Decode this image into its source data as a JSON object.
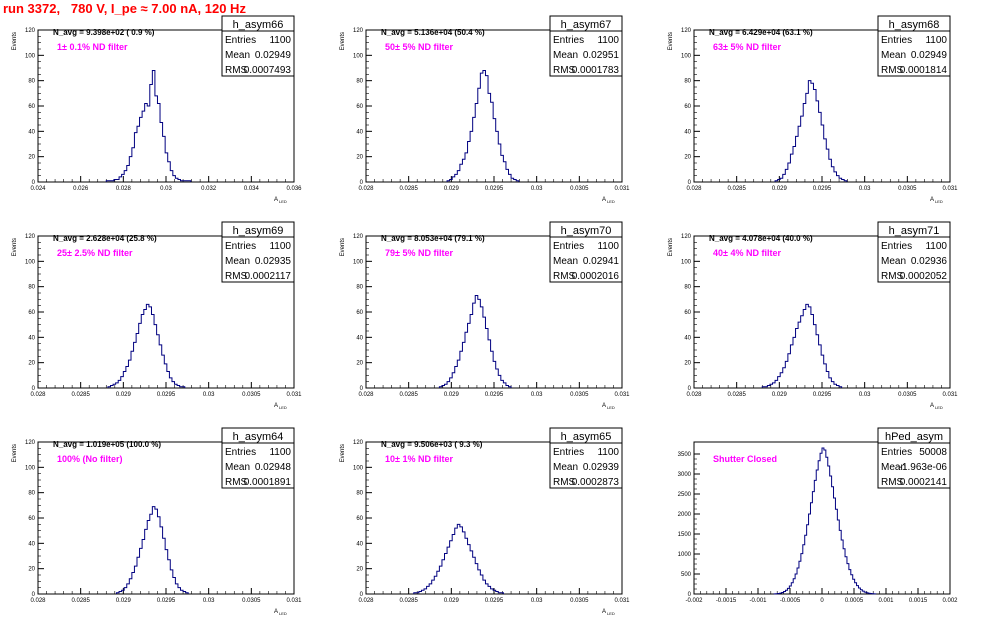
{
  "page": {
    "title": "run 3372,   780 V, I_pe ≈ 7.00 nA, 120 Hz",
    "line_color": "#000080",
    "annotation_color": "#ff00ff",
    "title_color": "#ff0000"
  },
  "chart_data": [
    {
      "type": "bar",
      "name": "h_asym66",
      "n_avg": "N_avg = 9.398e+02 ( 0.9 %)",
      "filter_label": "1± 0.1% ND filter",
      "stats": {
        "Entries": "1100",
        "Mean": "0.02949",
        "RMS": "0.0007493"
      },
      "xlabel": "A",
      "xlabel_sub": "LED",
      "ylabel": "Events",
      "xlim": [
        0.024,
        0.036
      ],
      "ylim": [
        0,
        120
      ],
      "xticks": [
        "0.024",
        "0.026",
        "0.028",
        "0.03",
        "0.032",
        "0.034",
        "0.036"
      ],
      "xtick_values": [
        0.024,
        0.026,
        0.028,
        0.03,
        0.032,
        0.034,
        0.036
      ],
      "yticks": [
        0,
        20,
        40,
        60,
        80,
        100,
        120
      ],
      "bins": {
        "x0": 0.0272,
        "width": 0.00012,
        "counts": [
          1,
          1,
          1,
          2,
          2,
          4,
          6,
          9,
          13,
          20,
          27,
          39,
          44,
          51,
          56,
          62,
          60,
          77,
          88,
          68,
          62,
          47,
          36,
          23,
          16,
          9,
          5,
          3,
          2,
          1,
          1,
          1,
          1
        ]
      }
    },
    {
      "type": "bar",
      "name": "h_asym67",
      "n_avg": "N_avg = 5.136e+04 (50.4 %)",
      "filter_label": "50± 5% ND filter",
      "stats": {
        "Entries": "1100",
        "Mean": "0.02951",
        "RMS": "0.0001783"
      },
      "xlabel": "A",
      "xlabel_sub": "LED",
      "ylabel": "Events",
      "xlim": [
        0.028,
        0.031
      ],
      "ylim": [
        0,
        120
      ],
      "xticks": [
        "0.028",
        "0.0285",
        "0.029",
        "0.0295",
        "0.03",
        "0.0305",
        "0.031"
      ],
      "xtick_values": [
        0.028,
        0.0285,
        0.029,
        0.0295,
        0.03,
        0.0305,
        0.031
      ],
      "yticks": [
        0,
        20,
        40,
        60,
        80,
        100,
        120
      ],
      "bins": {
        "x0": 0.02895,
        "width": 3e-05,
        "counts": [
          1,
          2,
          4,
          6,
          9,
          14,
          18,
          23,
          32,
          40,
          51,
          62,
          74,
          86,
          88,
          84,
          70,
          63,
          50,
          40,
          30,
          21,
          16,
          10,
          6,
          3,
          2,
          1
        ]
      }
    },
    {
      "type": "bar",
      "name": "h_asym68",
      "n_avg": "N_avg = 6.429e+04 (63.1 %)",
      "filter_label": "63± 5% ND filter",
      "stats": {
        "Entries": "1100",
        "Mean": "0.02949",
        "RMS": "0.0001814"
      },
      "xlabel": "A",
      "xlabel_sub": "LED",
      "ylabel": "Events",
      "xlim": [
        0.028,
        0.031
      ],
      "ylim": [
        0,
        120
      ],
      "xticks": [
        "0.028",
        "0.0285",
        "0.029",
        "0.0295",
        "0.03",
        "0.0305",
        "0.031"
      ],
      "xtick_values": [
        0.028,
        0.0285,
        0.029,
        0.0295,
        0.03,
        0.0305,
        0.031
      ],
      "yticks": [
        0,
        20,
        40,
        60,
        80,
        100,
        120
      ],
      "bins": {
        "x0": 0.02895,
        "width": 3e-05,
        "counts": [
          1,
          2,
          3,
          6,
          10,
          15,
          22,
          28,
          36,
          44,
          52,
          62,
          70,
          80,
          78,
          73,
          64,
          55,
          45,
          34,
          26,
          18,
          12,
          8,
          5,
          3,
          2,
          1
        ]
      }
    },
    {
      "type": "bar",
      "name": "h_asym69",
      "n_avg": "N_avg = 2.628e+04 (25.8 %)",
      "filter_label": "25± 2.5% ND filter",
      "stats": {
        "Entries": "1100",
        "Mean": "0.02935",
        "RMS": "0.0002117"
      },
      "xlabel": "A",
      "xlabel_sub": "LED",
      "ylabel": "Events",
      "xlim": [
        0.028,
        0.031
      ],
      "ylim": [
        0,
        120
      ],
      "xticks": [
        "0.028",
        "0.0285",
        "0.029",
        "0.0295",
        "0.03",
        "0.0305",
        "0.031"
      ],
      "xtick_values": [
        0.028,
        0.0285,
        0.029,
        0.0295,
        0.03,
        0.0305,
        0.031
      ],
      "yticks": [
        0,
        20,
        40,
        60,
        80,
        100,
        120
      ],
      "bins": {
        "x0": 0.02882,
        "width": 3e-05,
        "counts": [
          1,
          2,
          3,
          4,
          6,
          9,
          13,
          17,
          22,
          29,
          36,
          43,
          51,
          58,
          62,
          66,
          64,
          58,
          50,
          42,
          34,
          26,
          19,
          13,
          8,
          5,
          3,
          2,
          1,
          1
        ]
      }
    },
    {
      "type": "bar",
      "name": "h_asym70",
      "n_avg": "N_avg = 8.053e+04 (79.1 %)",
      "filter_label": "79± 5% ND filter",
      "stats": {
        "Entries": "1100",
        "Mean": "0.02941",
        "RMS": "0.0002016"
      },
      "xlabel": "A",
      "xlabel_sub": "LED",
      "ylabel": "Events",
      "xlim": [
        0.028,
        0.031
      ],
      "ylim": [
        0,
        120
      ],
      "xticks": [
        "0.028",
        "0.0285",
        "0.029",
        "0.0295",
        "0.03",
        "0.0305",
        "0.031"
      ],
      "xtick_values": [
        0.028,
        0.0285,
        0.029,
        0.0295,
        0.03,
        0.0305,
        0.031
      ],
      "yticks": [
        0,
        20,
        40,
        60,
        80,
        100,
        120
      ],
      "bins": {
        "x0": 0.02886,
        "width": 3e-05,
        "counts": [
          1,
          2,
          3,
          5,
          8,
          12,
          17,
          22,
          29,
          36,
          44,
          51,
          58,
          67,
          73,
          70,
          64,
          56,
          47,
          38,
          29,
          21,
          15,
          10,
          6,
          4,
          2,
          1
        ]
      }
    },
    {
      "type": "bar",
      "name": "h_asym71",
      "n_avg": "N_avg = 4.078e+04 (40.0 %)",
      "filter_label": "40± 4% ND filter",
      "stats": {
        "Entries": "1100",
        "Mean": "0.02936",
        "RMS": "0.0002052"
      },
      "xlabel": "A",
      "xlabel_sub": "LED",
      "ylabel": "Events",
      "xlim": [
        0.028,
        0.031
      ],
      "ylim": [
        0,
        120
      ],
      "xticks": [
        "0.028",
        "0.0285",
        "0.029",
        "0.0295",
        "0.03",
        "0.0305",
        "0.031"
      ],
      "xtick_values": [
        0.028,
        0.0285,
        0.029,
        0.0295,
        0.03,
        0.0305,
        0.031
      ],
      "yticks": [
        0,
        20,
        40,
        60,
        80,
        100,
        120
      ],
      "bins": {
        "x0": 0.0288,
        "width": 3e-05,
        "counts": [
          1,
          1,
          2,
          3,
          4,
          6,
          9,
          12,
          16,
          21,
          27,
          34,
          40,
          47,
          52,
          57,
          62,
          66,
          64,
          58,
          50,
          42,
          34,
          26,
          19,
          13,
          8,
          5,
          3,
          2,
          1
        ]
      }
    },
    {
      "type": "bar",
      "name": "h_asym64",
      "n_avg": "N_avg = 1.019e+05 (100.0 %)",
      "filter_label": "100% (No filter)",
      "stats": {
        "Entries": "1100",
        "Mean": "0.02948",
        "RMS": "0.0001891"
      },
      "xlabel": "A",
      "xlabel_sub": "LED",
      "ylabel": "Events",
      "xlim": [
        0.028,
        0.031
      ],
      "ylim": [
        0,
        120
      ],
      "xticks": [
        "0.028",
        "0.0285",
        "0.029",
        "0.0295",
        "0.03",
        "0.0305",
        "0.031"
      ],
      "xtick_values": [
        0.028,
        0.0285,
        0.029,
        0.0295,
        0.03,
        0.0305,
        0.031
      ],
      "yticks": [
        0,
        20,
        40,
        60,
        80,
        100,
        120
      ],
      "bins": {
        "x0": 0.02892,
        "width": 3e-05,
        "counts": [
          1,
          2,
          3,
          5,
          8,
          12,
          17,
          22,
          29,
          36,
          43,
          51,
          58,
          63,
          69,
          67,
          61,
          53,
          44,
          35,
          27,
          19,
          13,
          8,
          5,
          3,
          2,
          1
        ]
      }
    },
    {
      "type": "bar",
      "name": "h_asym65",
      "n_avg": "N_avg = 9.506e+03 ( 9.3 %)",
      "filter_label": "10± 1% ND filter",
      "stats": {
        "Entries": "1100",
        "Mean": "0.02939",
        "RMS": "0.0002873"
      },
      "xlabel": "A",
      "xlabel_sub": "LED",
      "ylabel": "Events",
      "xlim": [
        0.028,
        0.031
      ],
      "ylim": [
        0,
        120
      ],
      "xticks": [
        "0.028",
        "0.0285",
        "0.029",
        "0.0295",
        "0.03",
        "0.0305",
        "0.031"
      ],
      "xtick_values": [
        0.028,
        0.0285,
        0.029,
        0.0295,
        0.03,
        0.0305,
        0.031
      ],
      "yticks": [
        0,
        20,
        40,
        60,
        80,
        100,
        120
      ],
      "bins": {
        "x0": 0.02856,
        "width": 3e-05,
        "counts": [
          1,
          1,
          2,
          3,
          4,
          6,
          8,
          11,
          14,
          18,
          22,
          27,
          32,
          37,
          42,
          47,
          52,
          55,
          53,
          49,
          44,
          39,
          34,
          29,
          24,
          19,
          15,
          11,
          8,
          6,
          4,
          3,
          2,
          1,
          1
        ]
      }
    },
    {
      "type": "bar",
      "name": "hPed_asym",
      "n_avg": "",
      "filter_label": "Shutter Closed",
      "stats": {
        "Entries": "50008",
        "Mean": "-1.963e-06",
        "RMS": "0.0002141"
      },
      "xlabel": "",
      "xlabel_sub": "",
      "ylabel": "",
      "xlim": [
        -0.002,
        0.002
      ],
      "ylim": [
        0,
        3800
      ],
      "xticks": [
        "-0.002",
        "-0.0015",
        "-0.001",
        "-0.0005",
        "0",
        "0.0005",
        "0.001",
        "0.0015",
        "0.002"
      ],
      "xtick_values": [
        -0.002,
        -0.0015,
        -0.001,
        -0.0005,
        0,
        0.0005,
        0.001,
        0.0015,
        0.002
      ],
      "yticks": [
        0,
        500,
        1000,
        1500,
        2000,
        2500,
        3000,
        3500
      ],
      "bins": {
        "x0": -0.00075,
        "width": 3e-05,
        "counts": [
          3,
          6,
          12,
          22,
          38,
          62,
          95,
          140,
          200,
          280,
          380,
          500,
          650,
          820,
          1010,
          1230,
          1470,
          1730,
          2000,
          2280,
          2560,
          2840,
          3100,
          3330,
          3520,
          3650,
          3600,
          3420,
          3200,
          2950,
          2680,
          2400,
          2120,
          1850,
          1590,
          1350,
          1130,
          930,
          760,
          610,
          480,
          370,
          280,
          210,
          150,
          105,
          72,
          48,
          31,
          19,
          11,
          6,
          3
        ]
      }
    }
  ]
}
